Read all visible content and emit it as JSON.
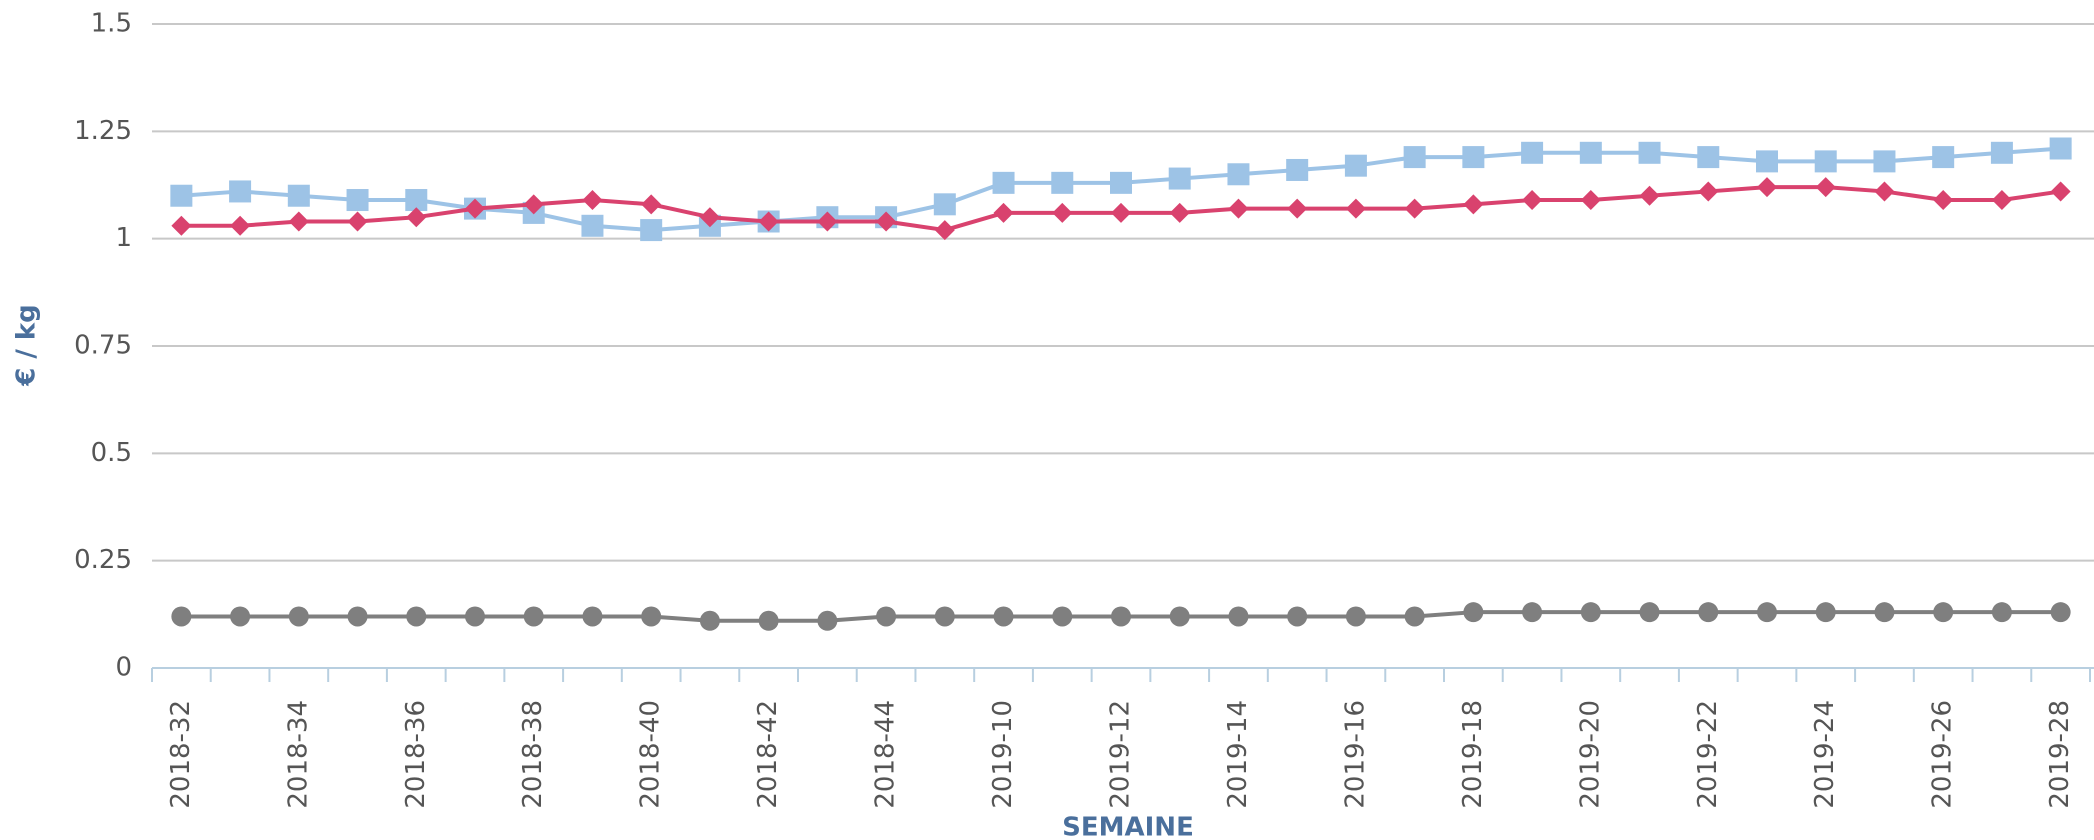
{
  "chart_data": {
    "type": "line",
    "ylabel": "€ / kg",
    "xlabel": "SEMAINE",
    "categories": [
      "2018-32",
      null,
      "2018-34",
      null,
      "2018-36",
      null,
      "2018-38",
      null,
      "2018-40",
      null,
      "2018-42",
      null,
      "2018-44",
      null,
      "2019-10",
      null,
      "2019-12",
      null,
      "2019-14",
      null,
      "2019-16",
      null,
      "2019-18",
      null,
      "2019-20",
      null,
      "2019-22",
      null,
      "2019-24",
      null,
      "2019-26",
      null,
      "2019-28"
    ],
    "series": [
      {
        "color": "#9dc3e6",
        "marker": "square",
        "values": [
          1.1,
          1.11,
          1.1,
          1.09,
          1.09,
          1.07,
          1.06,
          1.03,
          1.02,
          1.03,
          1.04,
          1.05,
          1.05,
          1.08,
          1.13,
          1.13,
          1.13,
          1.14,
          1.15,
          1.16,
          1.17,
          1.19,
          1.19,
          1.2,
          1.2,
          1.2,
          1.19,
          1.18,
          1.18,
          1.18,
          1.19,
          1.2,
          1.21
        ]
      },
      {
        "color": "#d9426e",
        "marker": "diamond",
        "values": [
          1.03,
          1.03,
          1.04,
          1.04,
          1.05,
          1.07,
          1.08,
          1.09,
          1.08,
          1.05,
          1.04,
          1.04,
          1.04,
          1.02,
          1.06,
          1.06,
          1.06,
          1.06,
          1.07,
          1.07,
          1.07,
          1.07,
          1.08,
          1.09,
          1.09,
          1.1,
          1.11,
          1.12,
          1.12,
          1.11,
          1.09,
          1.09,
          1.11
        ]
      },
      {
        "color": "#7f7f7f",
        "marker": "circle",
        "values": [
          0.12,
          0.12,
          0.12,
          0.12,
          0.12,
          0.12,
          0.12,
          0.12,
          0.12,
          0.11,
          0.11,
          0.11,
          0.12,
          0.12,
          0.12,
          0.12,
          0.12,
          0.12,
          0.12,
          0.12,
          0.12,
          0.12,
          0.13,
          0.13,
          0.13,
          0.13,
          0.13,
          0.13,
          0.13,
          0.13,
          0.13,
          0.13,
          0.13
        ]
      }
    ],
    "ylim": [
      0,
      1.5
    ],
    "yticks": [
      0,
      0.25,
      0.5,
      0.75,
      1,
      1.25,
      1.5
    ],
    "grid": true
  }
}
